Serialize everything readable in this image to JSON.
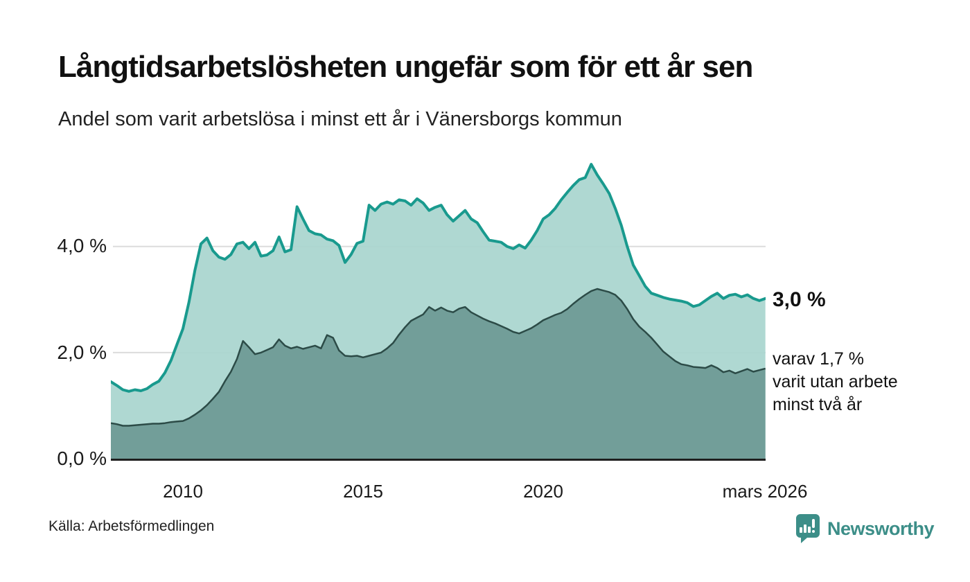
{
  "header": {
    "title": "Långtidsarbetslösheten ungefär som för ett år sen",
    "subtitle": "Andel som varit arbetslösa i minst ett år i Vänersborgs kommun"
  },
  "source": "Källa: Arbetsförmedlingen",
  "branding": {
    "name": "Newsworthy"
  },
  "colors": {
    "line_primary": "#199a8e",
    "fill_primary": "#a9d5cf",
    "line_secondary": "#2c4b47",
    "fill_secondary": "#6f9b96",
    "gridline": "#dcdcdc",
    "axis": "#1f1f1f",
    "brand_teal": "#3c8e88"
  },
  "chart_data": {
    "type": "area",
    "title": "Långtidsarbetslösheten ungefär som för ett år sen",
    "subtitle": "Andel som varit arbetslösa i minst ett år i Vänersborgs kommun",
    "grid": true,
    "legend_position": "none",
    "x_start": 2008.0,
    "x_step_years": 0.166667,
    "x_end": 2026.1667,
    "x_axis": {
      "ticks": [
        {
          "label": "2010",
          "year": 2010
        },
        {
          "label": "2015",
          "year": 2015
        },
        {
          "label": "2020",
          "year": 2020
        },
        {
          "label": "mars 2026",
          "year": 2026.17
        }
      ]
    },
    "y_axis": {
      "unit": "%",
      "range": [
        0,
        5.75
      ],
      "ticks": [
        {
          "label": "0,0 %",
          "value": 0
        },
        {
          "label": "2,0 %",
          "value": 2
        },
        {
          "label": "4,0 %",
          "value": 4
        }
      ]
    },
    "series": [
      {
        "name": "minst ett år",
        "latest_value": 3.0,
        "values": [
          1.45,
          1.38,
          1.3,
          1.27,
          1.3,
          1.28,
          1.32,
          1.4,
          1.46,
          1.62,
          1.85,
          2.15,
          2.45,
          2.95,
          3.55,
          4.05,
          4.16,
          3.92,
          3.8,
          3.76,
          3.85,
          4.05,
          4.08,
          3.96,
          4.08,
          3.82,
          3.84,
          3.92,
          4.18,
          3.9,
          3.94,
          4.75,
          4.52,
          4.3,
          4.24,
          4.22,
          4.14,
          4.11,
          4.02,
          3.7,
          3.85,
          4.06,
          4.1,
          4.78,
          4.68,
          4.8,
          4.84,
          4.8,
          4.88,
          4.86,
          4.78,
          4.9,
          4.82,
          4.68,
          4.74,
          4.78,
          4.6,
          4.48,
          4.58,
          4.68,
          4.52,
          4.45,
          4.28,
          4.12,
          4.1,
          4.08,
          4.0,
          3.96,
          4.03,
          3.97,
          4.12,
          4.3,
          4.52,
          4.6,
          4.72,
          4.88,
          5.02,
          5.15,
          5.26,
          5.3,
          5.55,
          5.35,
          5.18,
          5.0,
          4.72,
          4.4,
          4.0,
          3.65,
          3.45,
          3.25,
          3.12,
          3.08,
          3.04,
          3.01,
          2.99,
          2.97,
          2.94,
          2.87,
          2.9,
          2.98,
          3.06,
          3.12,
          3.02,
          3.08,
          3.1,
          3.05,
          3.09,
          3.02,
          2.98,
          3.02
        ]
      },
      {
        "name": "minst två år",
        "latest_value": 1.7,
        "values": [
          0.67,
          0.65,
          0.62,
          0.62,
          0.63,
          0.64,
          0.65,
          0.66,
          0.66,
          0.67,
          0.69,
          0.7,
          0.71,
          0.76,
          0.83,
          0.91,
          1.01,
          1.13,
          1.26,
          1.46,
          1.64,
          1.88,
          2.22,
          2.1,
          1.97,
          2.0,
          2.05,
          2.1,
          2.25,
          2.13,
          2.08,
          2.11,
          2.07,
          2.1,
          2.13,
          2.08,
          2.33,
          2.28,
          2.04,
          1.94,
          1.93,
          1.94,
          1.91,
          1.94,
          1.97,
          2.0,
          2.08,
          2.18,
          2.34,
          2.48,
          2.6,
          2.66,
          2.72,
          2.86,
          2.79,
          2.85,
          2.79,
          2.76,
          2.83,
          2.86,
          2.76,
          2.7,
          2.64,
          2.59,
          2.55,
          2.5,
          2.45,
          2.39,
          2.36,
          2.41,
          2.46,
          2.53,
          2.61,
          2.66,
          2.71,
          2.75,
          2.82,
          2.92,
          3.01,
          3.09,
          3.16,
          3.2,
          3.17,
          3.14,
          3.09,
          2.98,
          2.82,
          2.63,
          2.49,
          2.39,
          2.28,
          2.15,
          2.02,
          1.93,
          1.84,
          1.78,
          1.76,
          1.73,
          1.72,
          1.71,
          1.76,
          1.71,
          1.63,
          1.66,
          1.61,
          1.65,
          1.69,
          1.64,
          1.67,
          1.7
        ]
      }
    ],
    "annotations": {
      "latest_total": "3,0 %",
      "latest_two_years": [
        "varav 1,7 %",
        "varit utan arbete",
        "minst två år"
      ]
    }
  }
}
